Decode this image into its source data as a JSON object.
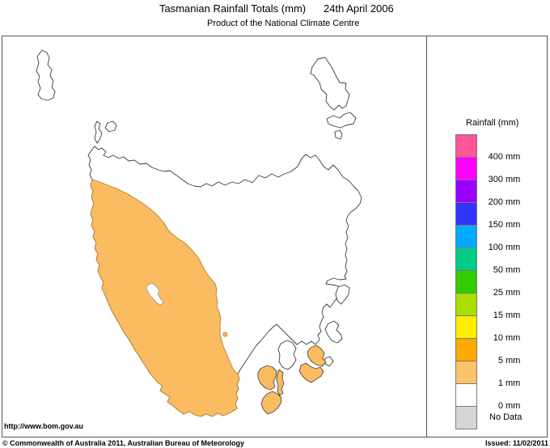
{
  "header": {
    "title": "Tasmanian Rainfall Totals (mm)",
    "date": "24th April 2006",
    "subtitle": "Product of the National Climate Centre"
  },
  "legend": {
    "title": "Rainfall (mm)",
    "entries": [
      {
        "color": "#FF5599",
        "num": "400",
        "unit": "mm"
      },
      {
        "color": "#FF00FF",
        "num": "300",
        "unit": "mm"
      },
      {
        "color": "#9900FF",
        "num": "200",
        "unit": "mm"
      },
      {
        "color": "#3333FF",
        "num": "150",
        "unit": "mm"
      },
      {
        "color": "#00AAFF",
        "num": "100",
        "unit": "mm"
      },
      {
        "color": "#00CC88",
        "num": "50",
        "unit": "mm"
      },
      {
        "color": "#33CC00",
        "num": "25",
        "unit": "mm"
      },
      {
        "color": "#AADD00",
        "num": "15",
        "unit": "mm"
      },
      {
        "color": "#FFEE00",
        "num": "10",
        "unit": "mm"
      },
      {
        "color": "#FFAA00",
        "num": "5",
        "unit": "mm"
      },
      {
        "color": "#FDC26B",
        "num": "1",
        "unit": "mm"
      },
      {
        "color": "#FFFFFF",
        "num": "0",
        "unit": "mm"
      },
      {
        "color": "#D6D6D6",
        "label": "No Data"
      }
    ]
  },
  "map": {
    "rain_region_color": "#FBBB60",
    "rain_band_label": "1 mm"
  },
  "footer": {
    "url": "http://www.bom.gov.au",
    "copyright": "© Commonwealth of Australia 2011, Australian Bureau of Meteorology",
    "issued": "Issued: 11/02/2011"
  }
}
